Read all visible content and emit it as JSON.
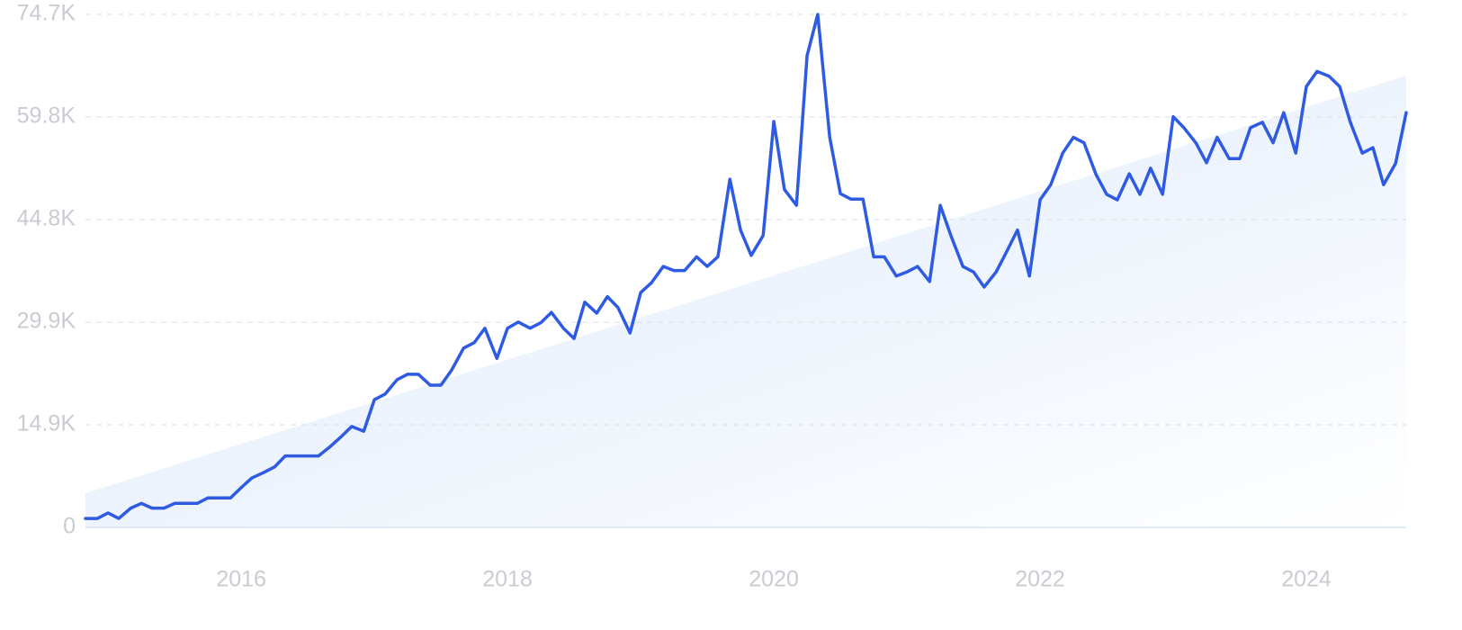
{
  "chart_data": {
    "type": "line",
    "x": [
      2014.83,
      2014.92,
      2015.0,
      2015.08,
      2015.17,
      2015.25,
      2015.33,
      2015.42,
      2015.5,
      2015.58,
      2015.67,
      2015.75,
      2015.83,
      2015.92,
      2016.0,
      2016.08,
      2016.17,
      2016.25,
      2016.33,
      2016.42,
      2016.5,
      2016.58,
      2016.67,
      2016.75,
      2016.83,
      2016.92,
      2017.0,
      2017.08,
      2017.17,
      2017.25,
      2017.33,
      2017.42,
      2017.5,
      2017.58,
      2017.67,
      2017.75,
      2017.83,
      2017.92,
      2018.0,
      2018.08,
      2018.17,
      2018.25,
      2018.33,
      2018.42,
      2018.5,
      2018.58,
      2018.67,
      2018.75,
      2018.83,
      2018.92,
      2019.0,
      2019.08,
      2019.17,
      2019.25,
      2019.33,
      2019.42,
      2019.5,
      2019.58,
      2019.67,
      2019.75,
      2019.83,
      2019.92,
      2020.0,
      2020.08,
      2020.17,
      2020.25,
      2020.33,
      2020.42,
      2020.5,
      2020.58,
      2020.67,
      2020.75,
      2020.83,
      2020.92,
      2021.0,
      2021.08,
      2021.17,
      2021.25,
      2021.33,
      2021.42,
      2021.5,
      2021.58,
      2021.67,
      2021.75,
      2021.83,
      2021.92,
      2022.0,
      2022.08,
      2022.17,
      2022.25,
      2022.33,
      2022.42,
      2022.5,
      2022.58,
      2022.67,
      2022.75,
      2022.83,
      2022.92,
      2023.0,
      2023.08,
      2023.17,
      2023.25,
      2023.33,
      2023.42,
      2023.5,
      2023.58,
      2023.67,
      2023.75,
      2023.83,
      2023.92,
      2024.0,
      2024.08,
      2024.17,
      2024.25,
      2024.33,
      2024.42,
      2024.5,
      2024.58,
      2024.67,
      2024.75
    ],
    "series": [
      {
        "color": "#2f5be3",
        "values": [
          1300,
          1300,
          2100,
          1300,
          2800,
          3500,
          2800,
          2800,
          3500,
          3500,
          3500,
          4300,
          4300,
          4300,
          5800,
          7200,
          8000,
          8800,
          10400,
          10400,
          10400,
          10400,
          11800,
          13200,
          14700,
          14000,
          18600,
          19400,
          21500,
          22300,
          22300,
          20700,
          20700,
          22900,
          26100,
          26900,
          29000,
          24600,
          29000,
          29900,
          29000,
          29800,
          31300,
          29000,
          27500,
          32800,
          31200,
          33600,
          32000,
          28300,
          34200,
          35600,
          38000,
          37400,
          37400,
          39400,
          38000,
          39400,
          50700,
          43300,
          39600,
          42500,
          59100,
          49200,
          46900,
          68700,
          74700,
          56800,
          48600,
          47800,
          47800,
          39400,
          39400,
          36600,
          37200,
          38000,
          35800,
          46900,
          42500,
          38000,
          37200,
          35000,
          37200,
          40200,
          43300,
          36600,
          47700,
          49900,
          54500,
          56800,
          56000,
          51400,
          48500,
          47700,
          51500,
          48500,
          52300,
          48500,
          59800,
          58200,
          56000,
          53100,
          56800,
          53700,
          53700,
          58200,
          59000,
          56000,
          60400,
          54500,
          64200,
          66400,
          65700,
          64200,
          59000,
          54500,
          55300,
          49900,
          53000,
          60400
        ]
      }
    ],
    "trendline": [
      4980,
      65800
    ],
    "xlim": [
      2014.83,
      2024.75
    ],
    "xticks": [
      2016,
      2018,
      2020,
      2022,
      2024
    ],
    "ylim": [
      0,
      74700
    ],
    "yticks": [
      0,
      {
        "value": 14940,
        "label": "14.9K"
      },
      {
        "value": 29880,
        "label": "29.9K"
      },
      {
        "value": 44820,
        "label": "44.8K"
      },
      {
        "value": 59760,
        "label": "59.8K"
      },
      {
        "value": 74700,
        "label": "74.7K"
      }
    ],
    "grid": true
  }
}
